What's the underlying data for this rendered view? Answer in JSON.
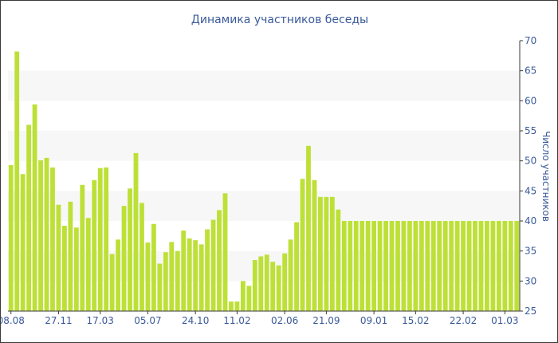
{
  "chart_data": {
    "type": "bar",
    "title": "Динамика участников беседы",
    "xlabel": "",
    "ylabel": "Число участников",
    "ylim": [
      25,
      70
    ],
    "y_ticks": [
      25,
      30,
      35,
      40,
      45,
      50,
      55,
      60,
      65,
      70
    ],
    "y_axis_side": "right",
    "grid": true,
    "bar_color": "#bde037",
    "band_color": "#f7f7f7",
    "title_color": "#3a5a9a",
    "x_tick_labels": [
      {
        "index": 0,
        "label": "08.08"
      },
      {
        "index": 8,
        "label": "27.11"
      },
      {
        "index": 15,
        "label": "17.03"
      },
      {
        "index": 23,
        "label": "05.07"
      },
      {
        "index": 31,
        "label": "24.10"
      },
      {
        "index": 38,
        "label": "11.02"
      },
      {
        "index": 46,
        "label": "02.06"
      },
      {
        "index": 53,
        "label": "21.09"
      },
      {
        "index": 61,
        "label": "09.01"
      },
      {
        "index": 68,
        "label": "15.02"
      },
      {
        "index": 76,
        "label": "22.02"
      },
      {
        "index": 83,
        "label": "01.03"
      }
    ],
    "values": [
      49.3,
      68.2,
      47.8,
      56,
      59.4,
      50.1,
      50.5,
      48.9,
      42.7,
      39.2,
      43.2,
      38.9,
      46,
      40.5,
      46.8,
      48.8,
      48.9,
      34.5,
      36.9,
      42.5,
      45.4,
      51.3,
      43,
      36.4,
      39.5,
      32.9,
      34.8,
      36.5,
      35,
      38.4,
      37.1,
      36.8,
      36.1,
      38.6,
      40.2,
      41.8,
      44.6,
      26.6,
      26.6,
      30,
      29.2,
      33.5,
      34.1,
      34.4,
      33.2,
      32.6,
      34.6,
      36.9,
      39.8,
      47,
      52.5,
      46.8,
      44,
      44,
      44,
      41.9,
      40,
      40,
      40,
      40,
      40,
      40,
      40,
      40,
      40,
      40,
      40,
      40,
      40,
      40,
      40,
      40,
      40,
      40,
      40,
      40,
      40,
      40,
      40,
      40,
      40,
      40,
      40,
      40,
      40,
      40
    ]
  }
}
